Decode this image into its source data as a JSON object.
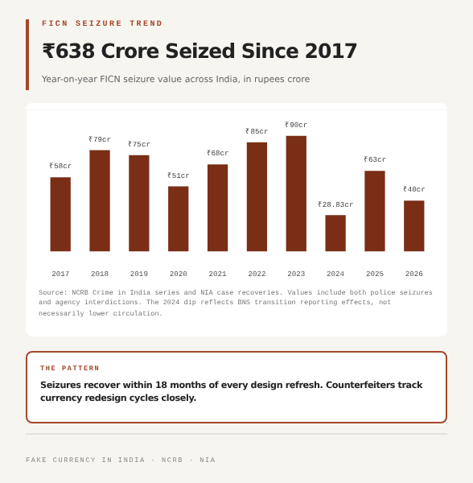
{
  "chart_data": {
    "type": "bar",
    "title": "₹638 Crore Seized Since 2017",
    "subtitle": "Year-on-year FICN seizure value across India, in rupees crore",
    "categories": [
      "2017",
      "2018",
      "2019",
      "2020",
      "2021",
      "2022",
      "2023",
      "2024",
      "2025",
      "2026"
    ],
    "values": [
      58,
      79,
      75,
      51,
      68,
      85,
      90,
      28.83,
      63,
      40
    ],
    "value_labels": [
      "₹58cr",
      "₹79cr",
      "₹75cr",
      "₹51cr",
      "₹68cr",
      "₹85cr",
      "₹90cr",
      "₹28.83cr",
      "₹63cr",
      "₹40cr"
    ],
    "color": "#7a2e16",
    "grid": false,
    "annotations": [
      "FICN SEIZURE TREND",
      "Source: NCRB Crime in India series and NIA case recoveries. Values include both police seizures and agency interdictions. The 2024 dip reflects BNS transition reporting effects, not necessarily lower circulation.",
      "THE PATTERN",
      "Seizures recover within 18 months of every design refresh. Counterfeiters track currency redesign cycles closely.",
      "FAKE CURRENCY IN INDIA · NCRB · NIA"
    ]
  }
}
